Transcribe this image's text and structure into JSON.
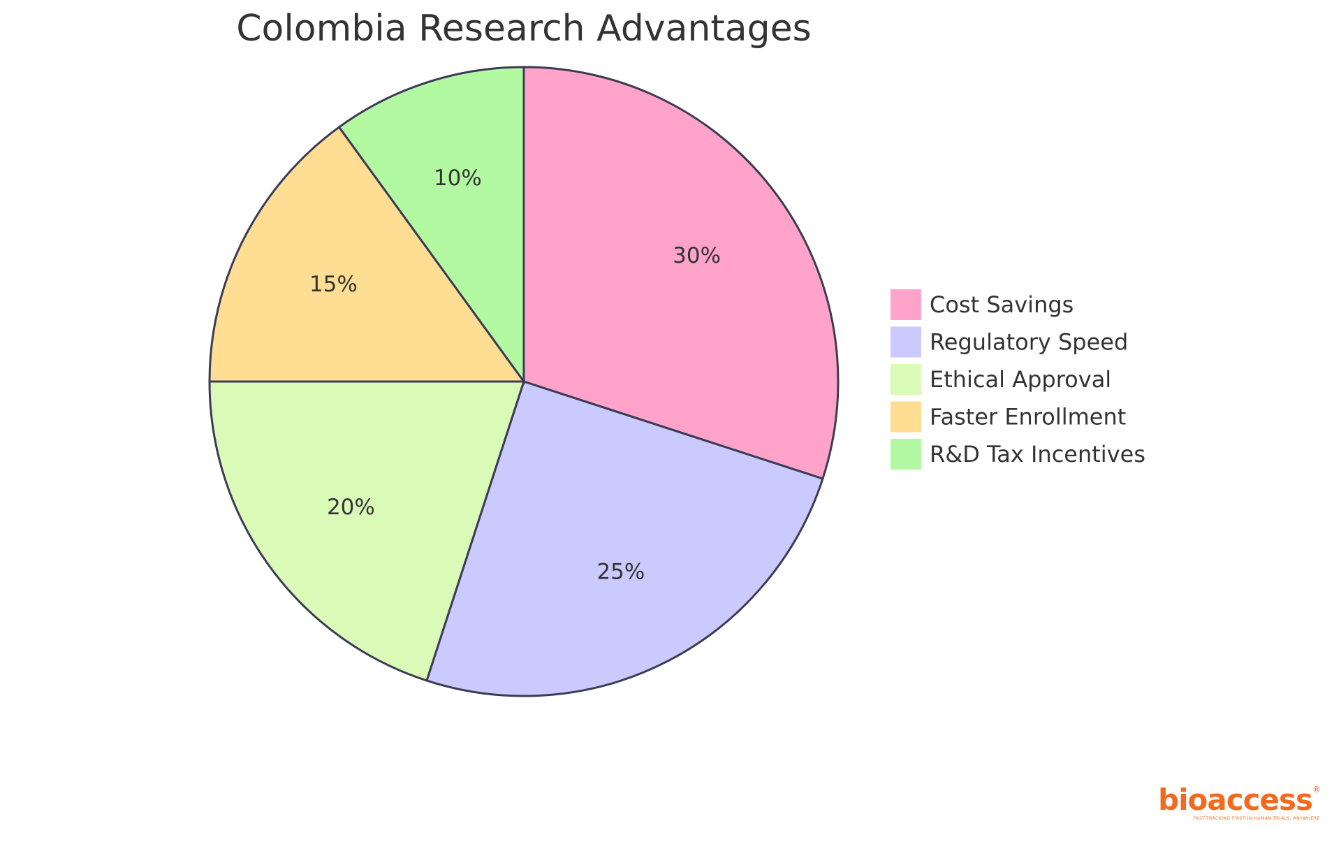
{
  "chart_data": {
    "type": "pie",
    "title": "Colombia Research Advantages",
    "slices": [
      {
        "label": "Cost Savings",
        "value": 30,
        "display": "30%",
        "color": "#FFA3CB"
      },
      {
        "label": "Regulatory Speed",
        "value": 25,
        "display": "25%",
        "color": "#CACAFF"
      },
      {
        "label": "Ethical Approval",
        "value": 20,
        "display": "20%",
        "color": "#DAFAB8"
      },
      {
        "label": "Faster Enrollment",
        "value": 15,
        "display": "15%",
        "color": "#FFDE93"
      },
      {
        "label": "R&D Tax Incentives",
        "value": 10,
        "display": "10%",
        "color": "#B3F9A2"
      }
    ],
    "legend": "right",
    "stroke_color": "#3B3B54"
  },
  "logo": {
    "name": "bioaccess",
    "mark": "®",
    "tagline": "FAST-TRACKING FIRST-IN-HUMAN TRIALS, ANYWHERE",
    "color": "#F26B1D"
  }
}
